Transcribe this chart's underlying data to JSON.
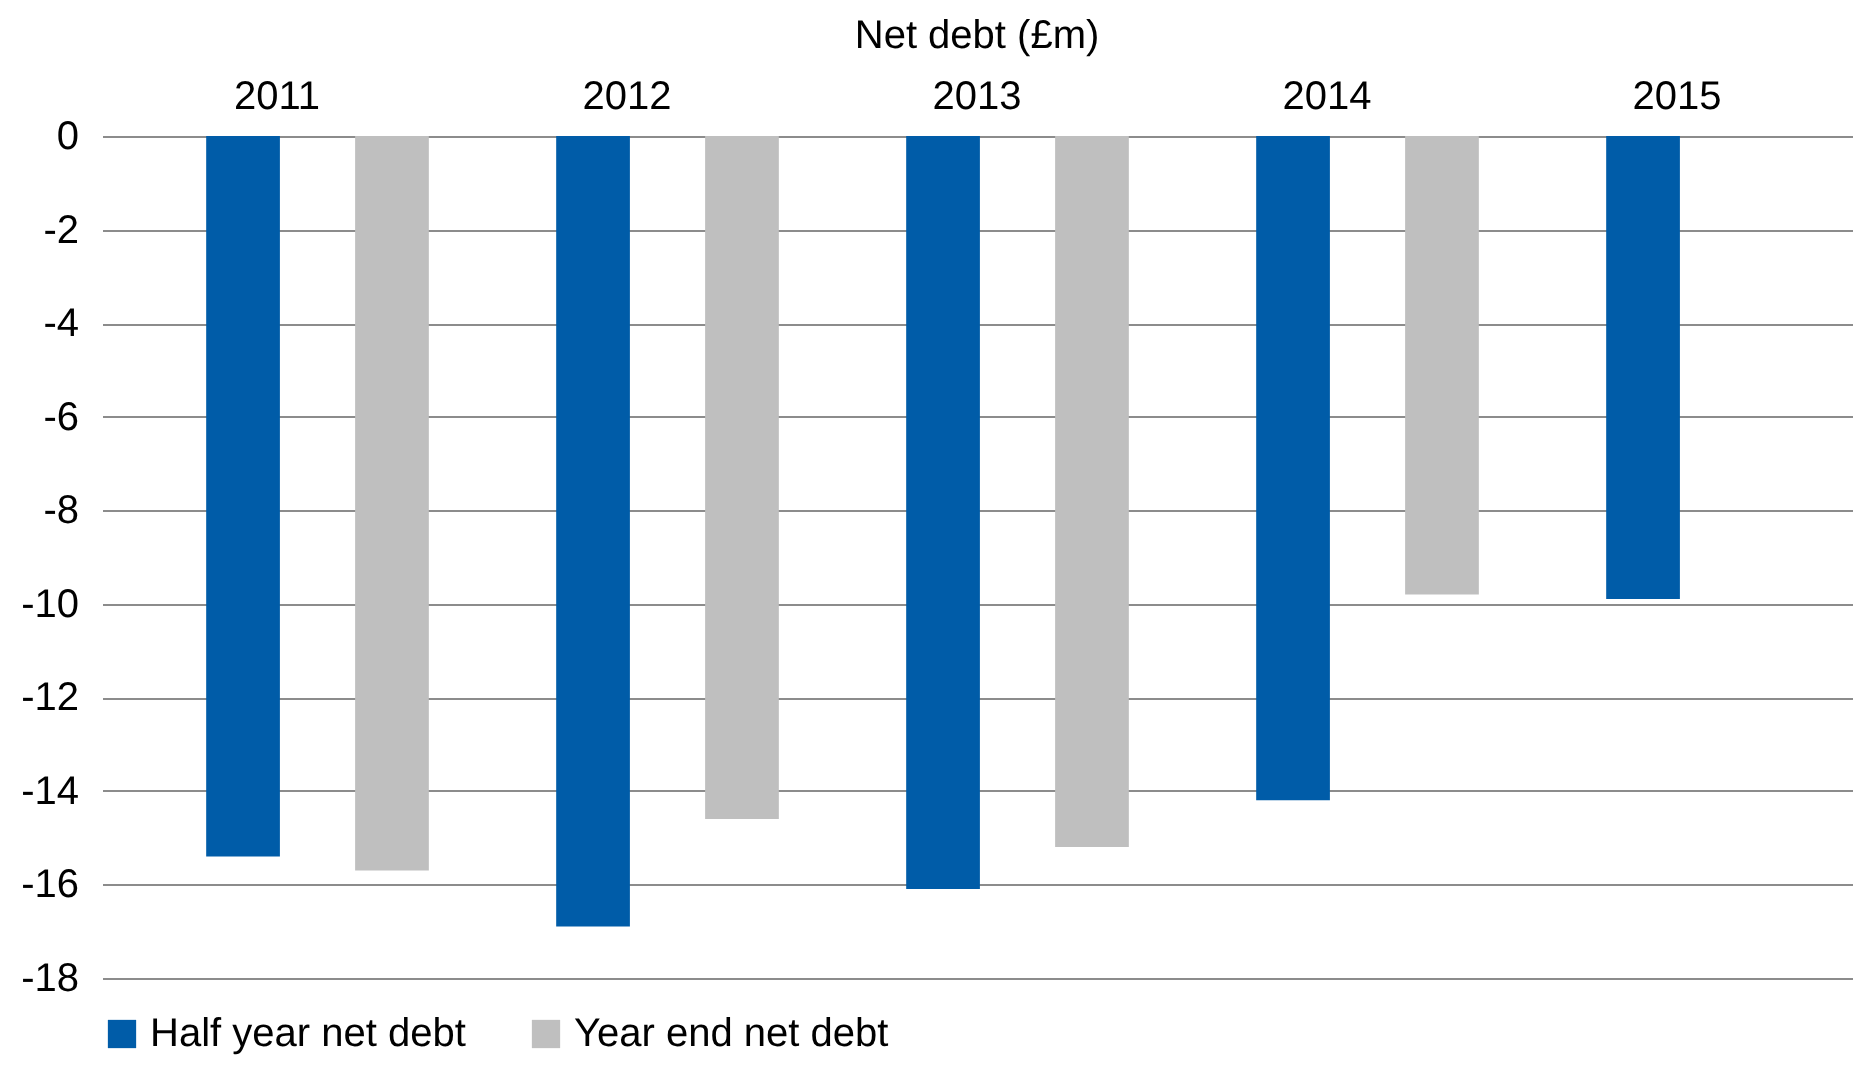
{
  "chart_data": {
    "type": "bar",
    "title": "Net debt (£m)",
    "categories": [
      "2011",
      "2012",
      "2013",
      "2014",
      "2015"
    ],
    "series": [
      {
        "name": "Half year net debt",
        "color": "#005ca8",
        "values": [
          -15.4,
          -16.9,
          -16.1,
          -14.2,
          -9.9
        ]
      },
      {
        "name": "Year end net debt",
        "color": "#bfbfbf",
        "values": [
          -15.7,
          -14.6,
          -15.2,
          -9.8,
          null
        ]
      }
    ],
    "ylim": [
      -18,
      0
    ],
    "yticks": [
      0,
      -2,
      -4,
      -6,
      -8,
      -10,
      -12,
      -14,
      -16,
      -18
    ],
    "grid": "y",
    "legend": "bottom"
  }
}
